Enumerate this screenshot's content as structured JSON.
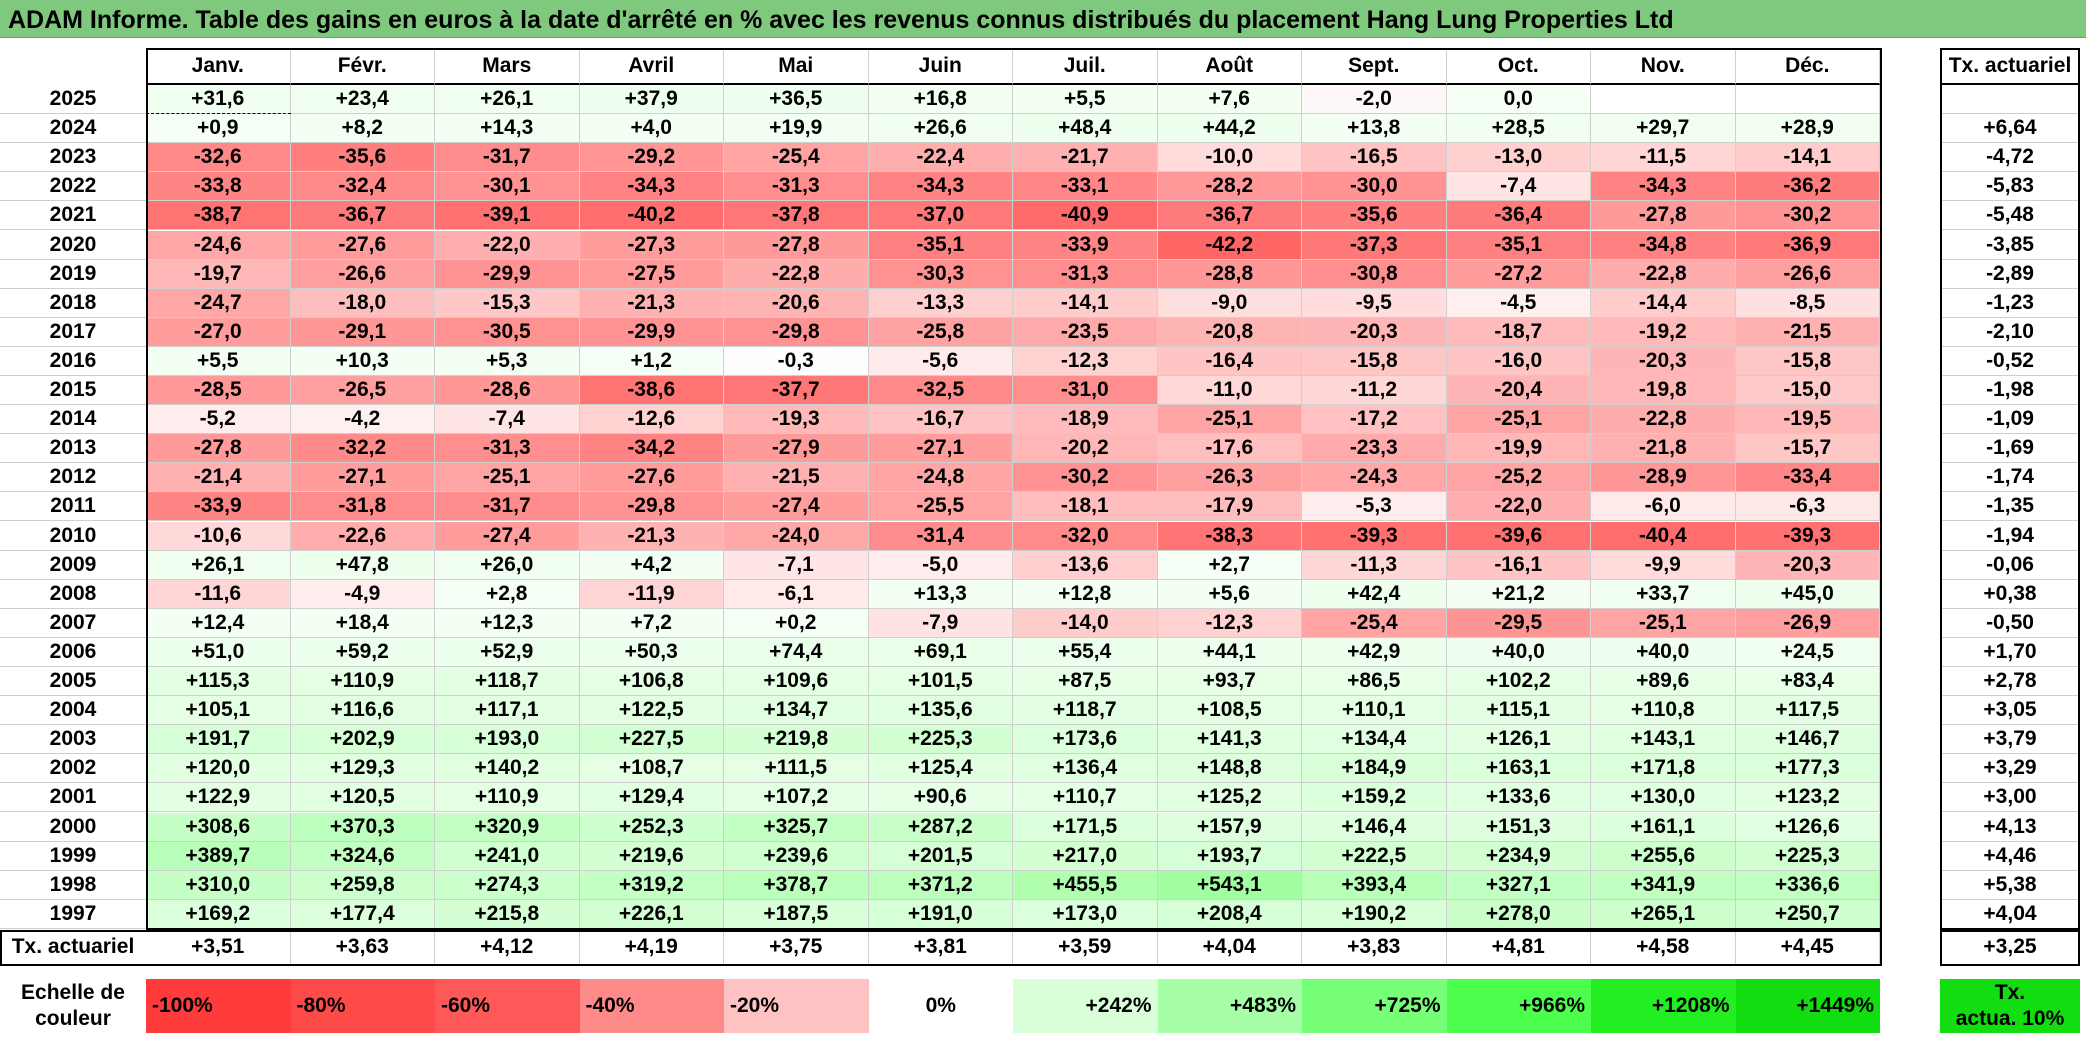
{
  "title": "ADAM Informe. Table des gains en euros à la date d'arrêté en % avec les revenus connus distribués du placement Hang Lung Properties Ltd",
  "months": [
    "Janv.",
    "Févr.",
    "Mars",
    "Avril",
    "Mai",
    "Juin",
    "Juil.",
    "Août",
    "Sept.",
    "Oct.",
    "Nov.",
    "Déc."
  ],
  "rate_header": "Tx. actuariel",
  "rows": [
    {
      "year": "2025",
      "values": [
        "+31,6",
        "+23,4",
        "+26,1",
        "+37,9",
        "+36,5",
        "+16,8",
        "+5,5",
        "+7,6",
        "-2,0",
        "0,0",
        "",
        ""
      ],
      "rate": ""
    },
    {
      "year": "2024",
      "values": [
        "+0,9",
        "+8,2",
        "+14,3",
        "+4,0",
        "+19,9",
        "+26,6",
        "+48,4",
        "+44,2",
        "+13,8",
        "+28,5",
        "+29,7",
        "+28,9"
      ],
      "rate": "+6,64"
    },
    {
      "year": "2023",
      "values": [
        "-32,6",
        "-35,6",
        "-31,7",
        "-29,2",
        "-25,4",
        "-22,4",
        "-21,7",
        "-10,0",
        "-16,5",
        "-13,0",
        "-11,5",
        "-14,1"
      ],
      "rate": "-4,72"
    },
    {
      "year": "2022",
      "values": [
        "-33,8",
        "-32,4",
        "-30,1",
        "-34,3",
        "-31,3",
        "-34,3",
        "-33,1",
        "-28,2",
        "-30,0",
        "-7,4",
        "-34,3",
        "-36,2"
      ],
      "rate": "-5,83"
    },
    {
      "year": "2021",
      "values": [
        "-38,7",
        "-36,7",
        "-39,1",
        "-40,2",
        "-37,8",
        "-37,0",
        "-40,9",
        "-36,7",
        "-35,6",
        "-36,4",
        "-27,8",
        "-30,2"
      ],
      "rate": "-5,48"
    },
    {
      "year": "2020",
      "values": [
        "-24,6",
        "-27,6",
        "-22,0",
        "-27,3",
        "-27,8",
        "-35,1",
        "-33,9",
        "-42,2",
        "-37,3",
        "-35,1",
        "-34,8",
        "-36,9"
      ],
      "rate": "-3,85"
    },
    {
      "year": "2019",
      "values": [
        "-19,7",
        "-26,6",
        "-29,9",
        "-27,5",
        "-22,8",
        "-30,3",
        "-31,3",
        "-28,8",
        "-30,8",
        "-27,2",
        "-22,8",
        "-26,6"
      ],
      "rate": "-2,89"
    },
    {
      "year": "2018",
      "values": [
        "-24,7",
        "-18,0",
        "-15,3",
        "-21,3",
        "-20,6",
        "-13,3",
        "-14,1",
        "-9,0",
        "-9,5",
        "-4,5",
        "-14,4",
        "-8,5"
      ],
      "rate": "-1,23"
    },
    {
      "year": "2017",
      "values": [
        "-27,0",
        "-29,1",
        "-30,5",
        "-29,9",
        "-29,8",
        "-25,8",
        "-23,5",
        "-20,8",
        "-20,3",
        "-18,7",
        "-19,2",
        "-21,5"
      ],
      "rate": "-2,10"
    },
    {
      "year": "2016",
      "values": [
        "+5,5",
        "+10,3",
        "+5,3",
        "+1,2",
        "-0,3",
        "-5,6",
        "-12,3",
        "-16,4",
        "-15,8",
        "-16,0",
        "-20,3",
        "-15,8"
      ],
      "rate": "-0,52"
    },
    {
      "year": "2015",
      "values": [
        "-28,5",
        "-26,5",
        "-28,6",
        "-38,6",
        "-37,7",
        "-32,5",
        "-31,0",
        "-11,0",
        "-11,2",
        "-20,4",
        "-19,8",
        "-15,0"
      ],
      "rate": "-1,98"
    },
    {
      "year": "2014",
      "values": [
        "-5,2",
        "-4,2",
        "-7,4",
        "-12,6",
        "-19,3",
        "-16,7",
        "-18,9",
        "-25,1",
        "-17,2",
        "-25,1",
        "-22,8",
        "-19,5"
      ],
      "rate": "-1,09"
    },
    {
      "year": "2013",
      "values": [
        "-27,8",
        "-32,2",
        "-31,3",
        "-34,2",
        "-27,9",
        "-27,1",
        "-20,2",
        "-17,6",
        "-23,3",
        "-19,9",
        "-21,8",
        "-15,7"
      ],
      "rate": "-1,69"
    },
    {
      "year": "2012",
      "values": [
        "-21,4",
        "-27,1",
        "-25,1",
        "-27,6",
        "-21,5",
        "-24,8",
        "-30,2",
        "-26,3",
        "-24,3",
        "-25,2",
        "-28,9",
        "-33,4"
      ],
      "rate": "-1,74"
    },
    {
      "year": "2011",
      "values": [
        "-33,9",
        "-31,8",
        "-31,7",
        "-29,8",
        "-27,4",
        "-25,5",
        "-18,1",
        "-17,9",
        "-5,3",
        "-22,0",
        "-6,0",
        "-6,3"
      ],
      "rate": "-1,35"
    },
    {
      "year": "2010",
      "values": [
        "-10,6",
        "-22,6",
        "-27,4",
        "-21,3",
        "-24,0",
        "-31,4",
        "-32,0",
        "-38,3",
        "-39,3",
        "-39,6",
        "-40,4",
        "-39,3"
      ],
      "rate": "-1,94"
    },
    {
      "year": "2009",
      "values": [
        "+26,1",
        "+47,8",
        "+26,0",
        "+4,2",
        "-7,1",
        "-5,0",
        "-13,6",
        "+2,7",
        "-11,3",
        "-16,1",
        "-9,9",
        "-20,3"
      ],
      "rate": "-0,06"
    },
    {
      "year": "2008",
      "values": [
        "-11,6",
        "-4,9",
        "+2,8",
        "-11,9",
        "-6,1",
        "+13,3",
        "+12,8",
        "+5,6",
        "+42,4",
        "+21,2",
        "+33,7",
        "+45,0"
      ],
      "rate": "+0,38"
    },
    {
      "year": "2007",
      "values": [
        "+12,4",
        "+18,4",
        "+12,3",
        "+7,2",
        "+0,2",
        "-7,9",
        "-14,0",
        "-12,3",
        "-25,4",
        "-29,5",
        "-25,1",
        "-26,9"
      ],
      "rate": "-0,50"
    },
    {
      "year": "2006",
      "values": [
        "+51,0",
        "+59,2",
        "+52,9",
        "+50,3",
        "+74,4",
        "+69,1",
        "+55,4",
        "+44,1",
        "+42,9",
        "+40,0",
        "+40,0",
        "+24,5"
      ],
      "rate": "+1,70"
    },
    {
      "year": "2005",
      "values": [
        "+115,3",
        "+110,9",
        "+118,7",
        "+106,8",
        "+109,6",
        "+101,5",
        "+87,5",
        "+93,7",
        "+86,5",
        "+102,2",
        "+89,6",
        "+83,4"
      ],
      "rate": "+2,78"
    },
    {
      "year": "2004",
      "values": [
        "+105,1",
        "+116,6",
        "+117,1",
        "+122,5",
        "+134,7",
        "+135,6",
        "+118,7",
        "+108,5",
        "+110,1",
        "+115,1",
        "+110,8",
        "+117,5"
      ],
      "rate": "+3,05"
    },
    {
      "year": "2003",
      "values": [
        "+191,7",
        "+202,9",
        "+193,0",
        "+227,5",
        "+219,8",
        "+225,3",
        "+173,6",
        "+141,3",
        "+134,4",
        "+126,1",
        "+143,1",
        "+146,7"
      ],
      "rate": "+3,79"
    },
    {
      "year": "2002",
      "values": [
        "+120,0",
        "+129,3",
        "+140,2",
        "+108,7",
        "+111,5",
        "+125,4",
        "+136,4",
        "+148,8",
        "+184,9",
        "+163,1",
        "+171,8",
        "+177,3"
      ],
      "rate": "+3,29"
    },
    {
      "year": "2001",
      "values": [
        "+122,9",
        "+120,5",
        "+110,9",
        "+129,4",
        "+107,2",
        "+90,6",
        "+110,7",
        "+125,2",
        "+159,2",
        "+133,6",
        "+130,0",
        "+123,2"
      ],
      "rate": "+3,00"
    },
    {
      "year": "2000",
      "values": [
        "+308,6",
        "+370,3",
        "+320,9",
        "+252,3",
        "+325,7",
        "+287,2",
        "+171,5",
        "+157,9",
        "+146,4",
        "+151,3",
        "+161,1",
        "+126,6"
      ],
      "rate": "+4,13"
    },
    {
      "year": "1999",
      "values": [
        "+389,7",
        "+324,6",
        "+241,0",
        "+219,6",
        "+239,6",
        "+201,5",
        "+217,0",
        "+193,7",
        "+222,5",
        "+234,9",
        "+255,6",
        "+225,3"
      ],
      "rate": "+4,46"
    },
    {
      "year": "1998",
      "values": [
        "+310,0",
        "+259,8",
        "+274,3",
        "+319,2",
        "+378,7",
        "+371,2",
        "+455,5",
        "+543,1",
        "+393,4",
        "+327,1",
        "+341,9",
        "+336,6"
      ],
      "rate": "+5,38"
    },
    {
      "year": "1997",
      "values": [
        "+169,2",
        "+177,4",
        "+215,8",
        "+226,1",
        "+187,5",
        "+191,0",
        "+173,0",
        "+208,4",
        "+190,2",
        "+278,0",
        "+265,1",
        "+250,7"
      ],
      "rate": "+4,04"
    }
  ],
  "footer": {
    "label": "Tx. actuariel",
    "values": [
      "+3,51",
      "+3,63",
      "+4,12",
      "+4,19",
      "+3,75",
      "+3,81",
      "+3,59",
      "+4,04",
      "+3,83",
      "+4,81",
      "+4,58",
      "+4,45"
    ],
    "rate": "+3,25"
  },
  "scale": {
    "label_line1": "Echelle de",
    "label_line2": "couleur",
    "items": [
      {
        "text": "-100%",
        "color": "#ff3b3b",
        "align": "left"
      },
      {
        "text": "-80%",
        "color": "#ff4a4a",
        "align": "left"
      },
      {
        "text": "-60%",
        "color": "#ff5858",
        "align": "left"
      },
      {
        "text": "-40%",
        "color": "#ff8a8a",
        "align": "left"
      },
      {
        "text": "-20%",
        "color": "#ffc2c2",
        "align": "left"
      },
      {
        "text": "0%",
        "color": "#ffffff",
        "align": "center"
      },
      {
        "text": "+242%",
        "color": "#d9ffd9",
        "align": "right"
      },
      {
        "text": "+483%",
        "color": "#a6ffa6",
        "align": "right"
      },
      {
        "text": "+725%",
        "color": "#78ff78",
        "align": "right"
      },
      {
        "text": "+966%",
        "color": "#4dff4d",
        "align": "right"
      },
      {
        "text": "+1208%",
        "color": "#22ee22",
        "align": "right"
      },
      {
        "text": "+1449%",
        "color": "#11dd11",
        "align": "right"
      }
    ],
    "rate_line1": "Tx.",
    "rate_line2": "actua. 10%",
    "rate_color": "#11dd11"
  }
}
